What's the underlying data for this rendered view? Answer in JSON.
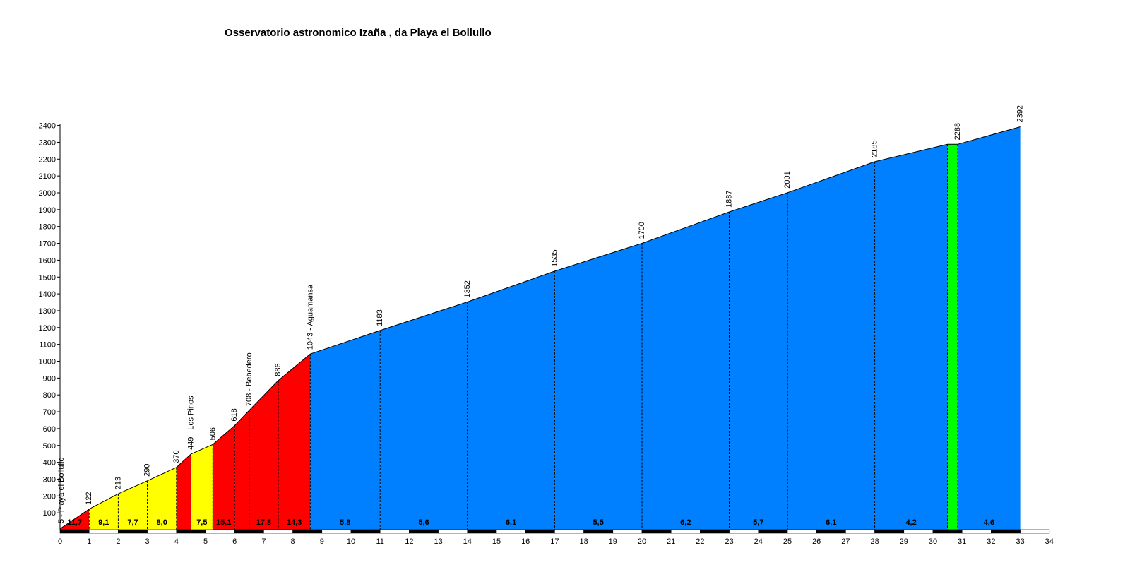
{
  "chart_data": {
    "type": "area",
    "title": "Osservatorio astronomico Izaña , da Playa el Bollullo",
    "xlabel": "",
    "ylabel": "",
    "xlim": [
      0,
      34
    ],
    "ylim": [
      0,
      2400
    ],
    "x_ticks": [
      0,
      1,
      2,
      3,
      4,
      5,
      6,
      7,
      8,
      9,
      10,
      11,
      12,
      13,
      14,
      15,
      16,
      17,
      18,
      19,
      20,
      21,
      22,
      23,
      24,
      25,
      26,
      27,
      28,
      29,
      30,
      31,
      32,
      33,
      34
    ],
    "y_ticks": [
      100,
      200,
      300,
      400,
      500,
      600,
      700,
      800,
      900,
      1000,
      1100,
      1200,
      1300,
      1400,
      1500,
      1600,
      1700,
      1800,
      1900,
      2000,
      2100,
      2200,
      2300,
      2400
    ],
    "grid": false,
    "legend": "none",
    "profile_points": [
      {
        "km": 0,
        "altitude": 5,
        "label": "5 - Playa el Bollullo"
      },
      {
        "km": 1,
        "altitude": 122,
        "label": "122"
      },
      {
        "km": 2,
        "altitude": 213,
        "label": "213"
      },
      {
        "km": 3,
        "altitude": 290,
        "label": "290"
      },
      {
        "km": 4,
        "altitude": 370,
        "label": "370"
      },
      {
        "km": 4.5,
        "altitude": 449,
        "label": "449 - Los Pinos"
      },
      {
        "km": 5.25,
        "altitude": 506,
        "label": "506"
      },
      {
        "km": 6,
        "altitude": 618,
        "label": "618"
      },
      {
        "km": 6.5,
        "altitude": 708,
        "label": "708 - Bebedero"
      },
      {
        "km": 7.5,
        "altitude": 886,
        "label": "886"
      },
      {
        "km": 8.6,
        "altitude": 1043,
        "label": "1043 - Aguamansa"
      },
      {
        "km": 11,
        "altitude": 1183,
        "label": "1183"
      },
      {
        "km": 14,
        "altitude": 1352,
        "label": "1352"
      },
      {
        "km": 17,
        "altitude": 1535,
        "label": "1535"
      },
      {
        "km": 20,
        "altitude": 1700,
        "label": "1700"
      },
      {
        "km": 23,
        "altitude": 1887,
        "label": "1887"
      },
      {
        "km": 25,
        "altitude": 2001,
        "label": "2001"
      },
      {
        "km": 28,
        "altitude": 2185,
        "label": "2185"
      },
      {
        "km": 30.5,
        "altitude": 2288,
        "label": ""
      },
      {
        "km": 30.85,
        "altitude": 2288,
        "label": "2288"
      },
      {
        "km": 33,
        "altitude": 2392,
        "label": "2392"
      }
    ],
    "segments": [
      {
        "from": 0,
        "to": 1,
        "gradient": "11,7",
        "color": "#ff0000"
      },
      {
        "from": 1,
        "to": 2,
        "gradient": "9,1",
        "color": "#ffff00"
      },
      {
        "from": 2,
        "to": 3,
        "gradient": "7,7",
        "color": "#ffff00"
      },
      {
        "from": 3,
        "to": 4,
        "gradient": "8,0",
        "color": "#ffff00"
      },
      {
        "from": 4,
        "to": 4.5,
        "gradient": "",
        "color": "#ff0000"
      },
      {
        "from": 4.5,
        "to": 5.25,
        "gradient": "7,5",
        "color": "#ffff00"
      },
      {
        "from": 5.25,
        "to": 6,
        "gradient": "15,1",
        "color": "#ff0000"
      },
      {
        "from": 6,
        "to": 6.5,
        "gradient": "",
        "color": "#ff0000"
      },
      {
        "from": 6.5,
        "to": 7.5,
        "gradient": "17,8",
        "color": "#ff0000"
      },
      {
        "from": 7.5,
        "to": 8.6,
        "gradient": "14,3",
        "color": "#ff0000"
      },
      {
        "from": 8.6,
        "to": 11,
        "gradient": "5,8",
        "color": "#0080ff"
      },
      {
        "from": 11,
        "to": 14,
        "gradient": "5,6",
        "color": "#0080ff"
      },
      {
        "from": 14,
        "to": 17,
        "gradient": "6,1",
        "color": "#0080ff"
      },
      {
        "from": 17,
        "to": 20,
        "gradient": "5,5",
        "color": "#0080ff"
      },
      {
        "from": 20,
        "to": 23,
        "gradient": "6,2",
        "color": "#0080ff"
      },
      {
        "from": 23,
        "to": 25,
        "gradient": "5,7",
        "color": "#0080ff"
      },
      {
        "from": 25,
        "to": 28,
        "gradient": "6,1",
        "color": "#0080ff"
      },
      {
        "from": 28,
        "to": 30.5,
        "gradient": "4,2",
        "color": "#0080ff"
      },
      {
        "from": 30.5,
        "to": 30.85,
        "gradient": "",
        "color": "#00ff00"
      },
      {
        "from": 30.85,
        "to": 33,
        "gradient": "4,6",
        "color": "#0080ff"
      }
    ]
  }
}
